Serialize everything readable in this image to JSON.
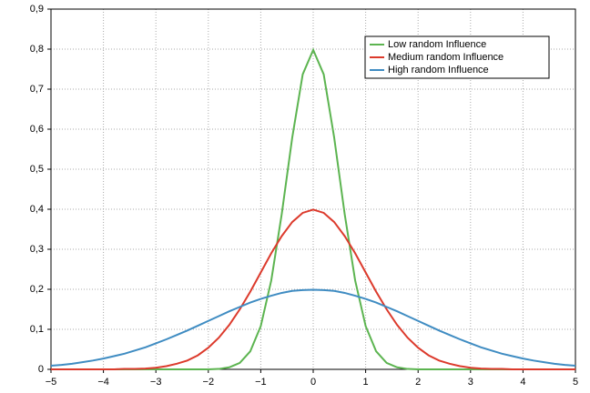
{
  "chart_data": {
    "type": "line",
    "x": [
      -5,
      -4.8,
      -4.6,
      -4.4,
      -4.2,
      -4,
      -3.8,
      -3.6,
      -3.4,
      -3.2,
      -3,
      -2.8,
      -2.6,
      -2.4,
      -2.2,
      -2,
      -1.8,
      -1.6,
      -1.4,
      -1.2,
      -1,
      -0.8,
      -0.6,
      -0.4,
      -0.2,
      0,
      0.2,
      0.4,
      0.6,
      0.8,
      1,
      1.2,
      1.4,
      1.6,
      1.8,
      2,
      2.2,
      2.4,
      2.6,
      2.8,
      3,
      3.2,
      3.4,
      3.6,
      3.8,
      4,
      4.2,
      4.4,
      4.6,
      4.8,
      5
    ],
    "series": [
      {
        "name": "Low random Influence",
        "color": "#5cb450",
        "values": [
          0,
          0,
          0,
          0,
          0,
          0,
          0,
          0,
          0,
          0,
          0,
          0,
          0,
          0,
          0,
          0,
          0.001,
          0.005,
          0.016,
          0.045,
          0.108,
          0.222,
          0.388,
          0.579,
          0.737,
          0.798,
          0.737,
          0.579,
          0.388,
          0.222,
          0.108,
          0.045,
          0.016,
          0.005,
          0.001,
          0,
          0,
          0,
          0,
          0,
          0,
          0,
          0,
          0,
          0,
          0,
          0,
          0,
          0,
          0,
          0
        ]
      },
      {
        "name": "Medium random Influence",
        "color": "#dc3a2c",
        "values": [
          0,
          0,
          0,
          0,
          0,
          0,
          0,
          0.001,
          0.001,
          0.002,
          0.004,
          0.008,
          0.014,
          0.022,
          0.035,
          0.054,
          0.079,
          0.111,
          0.15,
          0.194,
          0.242,
          0.29,
          0.333,
          0.368,
          0.391,
          0.399,
          0.391,
          0.368,
          0.333,
          0.29,
          0.242,
          0.194,
          0.15,
          0.111,
          0.079,
          0.054,
          0.035,
          0.022,
          0.014,
          0.008,
          0.004,
          0.002,
          0.001,
          0.001,
          0,
          0,
          0,
          0,
          0,
          0,
          0
        ]
      },
      {
        "name": "High random Influence",
        "color": "#3f8cc2",
        "values": [
          0.009,
          0.011,
          0.014,
          0.018,
          0.022,
          0.027,
          0.033,
          0.039,
          0.047,
          0.055,
          0.065,
          0.075,
          0.086,
          0.097,
          0.109,
          0.121,
          0.133,
          0.145,
          0.156,
          0.167,
          0.176,
          0.184,
          0.191,
          0.196,
          0.198,
          0.199,
          0.198,
          0.196,
          0.191,
          0.184,
          0.176,
          0.167,
          0.156,
          0.145,
          0.133,
          0.121,
          0.109,
          0.097,
          0.086,
          0.075,
          0.065,
          0.055,
          0.047,
          0.039,
          0.033,
          0.027,
          0.022,
          0.018,
          0.014,
          0.011,
          0.009
        ]
      }
    ],
    "xlim": [
      -5,
      5
    ],
    "xticks": [
      {
        "value": -5,
        "label": "−5"
      },
      {
        "value": -4,
        "label": "−4"
      },
      {
        "value": -3,
        "label": "−3"
      },
      {
        "value": -2,
        "label": "−2"
      },
      {
        "value": -1,
        "label": "−1"
      },
      0,
      1,
      2,
      3,
      4,
      5
    ],
    "ylim": [
      0,
      0.9
    ],
    "yticks": [
      0,
      {
        "value": 0.1,
        "label": "0,1"
      },
      {
        "value": 0.2,
        "label": "0,2"
      },
      {
        "value": 0.3,
        "label": "0,3"
      },
      {
        "value": 0.4,
        "label": "0,4"
      },
      {
        "value": 0.5,
        "label": "0,5"
      },
      {
        "value": 0.6,
        "label": "0,6"
      },
      {
        "value": 0.7,
        "label": "0,7"
      },
      {
        "value": 0.8,
        "label": "0,8"
      },
      {
        "value": 0.9,
        "label": "0,9"
      }
    ],
    "grid": true,
    "legend": "upper right"
  }
}
